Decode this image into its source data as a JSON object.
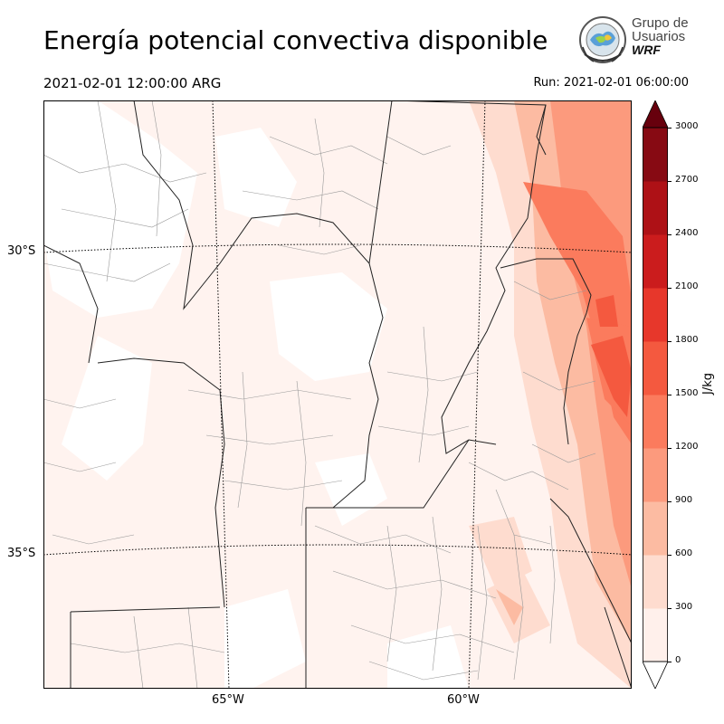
{
  "header": {
    "title": "Energía potencial convectiva disponible",
    "valid_time": "2021-02-01 12:00:00 ARG",
    "run_time": "Run: 2021-02-01 06:00:00"
  },
  "logo": {
    "line1": "Grupo de",
    "line2": "Usuarios",
    "line3": "WRF"
  },
  "map": {
    "lat_labels": [
      "30°S",
      "35°S"
    ],
    "lon_labels": [
      "65°W",
      "60°W"
    ],
    "field": "CAPE"
  },
  "colorbar": {
    "unit": "J/kg",
    "ticks": [
      "0",
      "300",
      "600",
      "900",
      "1200",
      "1500",
      "1800",
      "2100",
      "2400",
      "2700",
      "3000"
    ],
    "colors": [
      "#fff0eb",
      "#fedccf",
      "#fcbba2",
      "#fc9a7d",
      "#fb7b5d",
      "#f4593f",
      "#e7372b",
      "#cb1c1d",
      "#ae1116",
      "#870a13",
      "#67000d"
    ]
  }
}
